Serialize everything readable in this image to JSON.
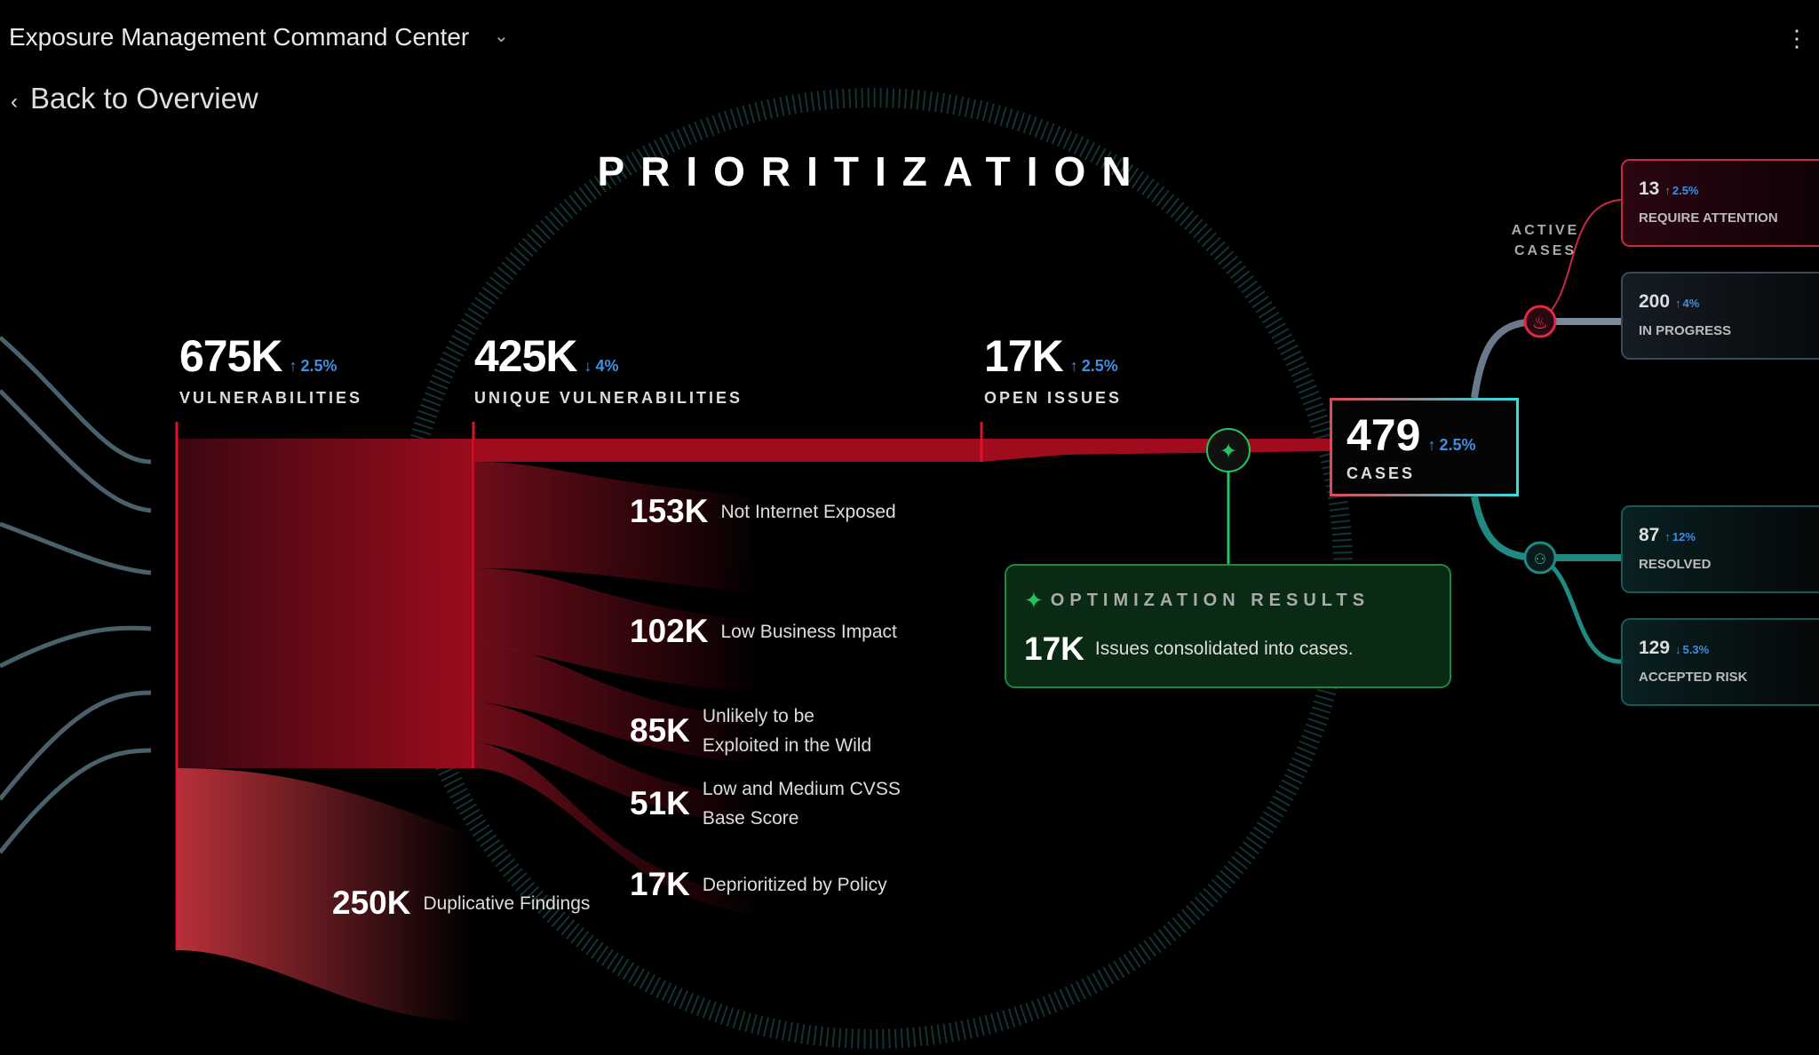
{
  "header": {
    "title": "Exposure Management Command Center",
    "back_label": "Back to Overview",
    "menu_icon": "kebab-icon"
  },
  "page_title": "PRIORITIZATION",
  "stats": [
    {
      "value": "675K",
      "delta": "2.5%",
      "direction": "up",
      "label": "VULNERABILITIES"
    },
    {
      "value": "425K",
      "delta": "4%",
      "direction": "down",
      "label": "UNIQUE VULNERABILITIES"
    },
    {
      "value": "17K",
      "delta": "2.5%",
      "direction": "up",
      "label": "OPEN ISSUES"
    }
  ],
  "breakdown": [
    {
      "value": "153K",
      "label": "Not Internet Exposed"
    },
    {
      "value": "102K",
      "label": "Low Business Impact"
    },
    {
      "value": "85K",
      "label": "Unlikely to be Exploited in the Wild"
    },
    {
      "value": "51K",
      "label": "Low and Medium CVSS Base Score"
    },
    {
      "value": "17K",
      "label": "Deprioritized by Policy"
    }
  ],
  "duplicates": {
    "value": "250K",
    "label": "Duplicative Findings"
  },
  "cases": {
    "value": "479",
    "delta": "2.5%",
    "direction": "up",
    "label": "CASES"
  },
  "optimization": {
    "title": "OPTIMIZATION RESULTS",
    "value": "17K",
    "text": "Issues consolidated into cases."
  },
  "active_cases_label": "ACTIVE CASES",
  "case_cards": [
    {
      "value": "13",
      "delta": "2.5%",
      "direction": "up",
      "label": "REQUIRE ATTENTION",
      "color": "#c8284a"
    },
    {
      "value": "200",
      "delta": "4%",
      "direction": "up",
      "label": "IN PROGRESS",
      "color": "#5a6a7a"
    },
    {
      "value": "87",
      "delta": "12%",
      "direction": "up",
      "label": "RESOLVED",
      "color": "#1f8a82"
    },
    {
      "value": "129",
      "delta": "5.3%",
      "direction": "down",
      "label": "ACCEPTED RISK",
      "color": "#1f8a82"
    }
  ],
  "colors": {
    "accent_red": "#b00f22",
    "accent_teal": "#2ab8b0",
    "accent_green": "#22c55e",
    "delta_blue": "#3d8fe0"
  }
}
